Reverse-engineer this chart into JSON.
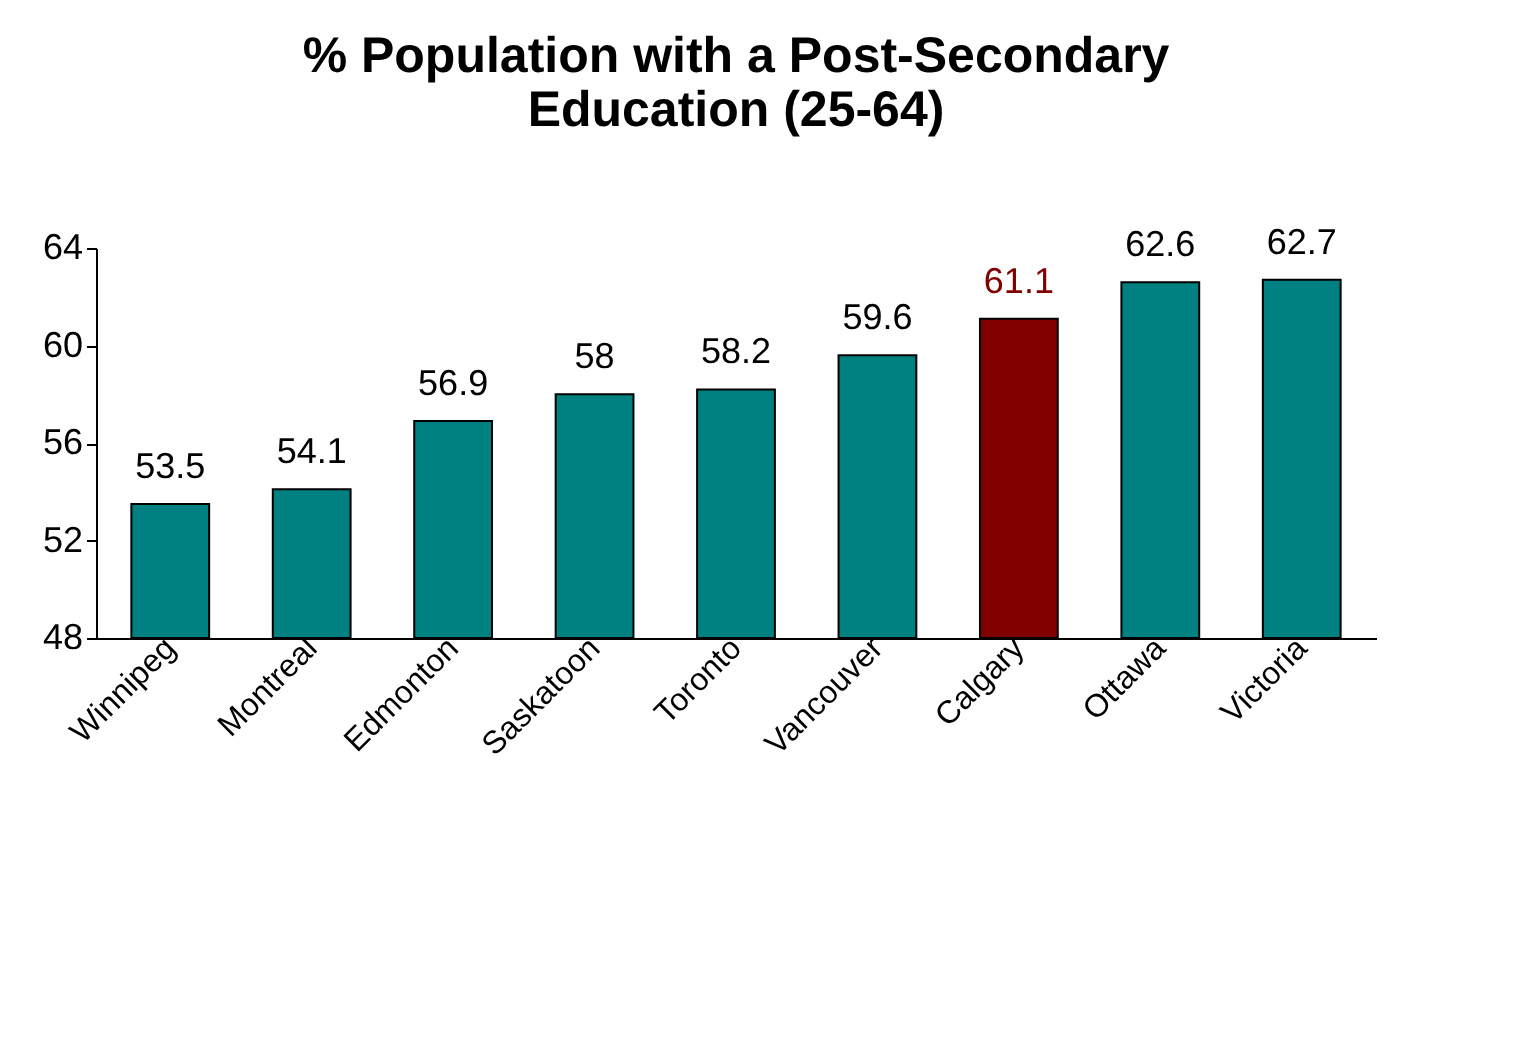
{
  "chart_data": {
    "type": "bar",
    "title": "% Population with a Post-Secondary Education (25-64)",
    "categories": [
      "Winnipeg",
      "Montreal",
      "Edmonton",
      "Saskatoon",
      "Toronto",
      "Vancouver",
      "Calgary",
      "Ottawa",
      "Victoria"
    ],
    "values": [
      53.5,
      54.1,
      56.9,
      58,
      58.2,
      59.6,
      61.1,
      62.6,
      62.7
    ],
    "colors": [
      "#008080",
      "#008080",
      "#008080",
      "#008080",
      "#008080",
      "#008080",
      "#800000",
      "#008080",
      "#008080"
    ],
    "ylim": [
      48,
      64
    ],
    "yticks": [
      48,
      52,
      56,
      60,
      64
    ],
    "data_labels": true
  }
}
